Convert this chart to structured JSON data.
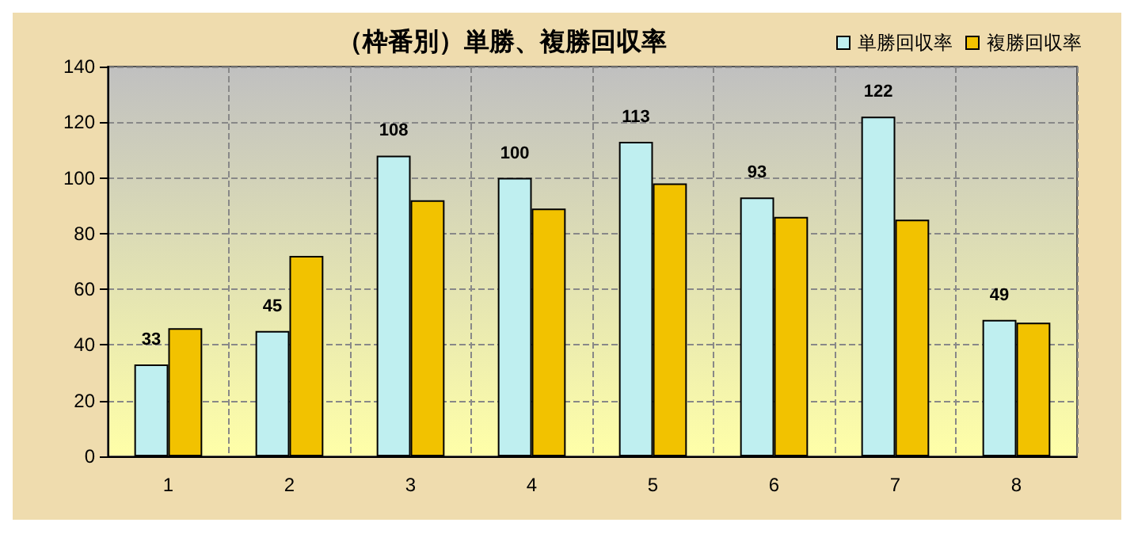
{
  "chart_data": {
    "type": "bar",
    "title": "（枠番別）単勝、複勝回収率",
    "categories": [
      "1",
      "2",
      "3",
      "4",
      "5",
      "6",
      "7",
      "8"
    ],
    "series": [
      {
        "name": "単勝回収率",
        "color": "#bfeff0",
        "values": [
          33,
          45,
          108,
          100,
          113,
          93,
          122,
          49
        ],
        "value_labels": [
          "33",
          "45",
          "108",
          "100",
          "113",
          "93",
          "122",
          "49"
        ]
      },
      {
        "name": "複勝回収率",
        "color": "#f2c200",
        "values": [
          46,
          72,
          92,
          89,
          98,
          86,
          85,
          48
        ]
      }
    ],
    "ylim": [
      0,
      140
    ],
    "yticks": [
      0,
      20,
      40,
      60,
      80,
      100,
      120,
      140
    ],
    "grid": true,
    "legend": "top right"
  }
}
